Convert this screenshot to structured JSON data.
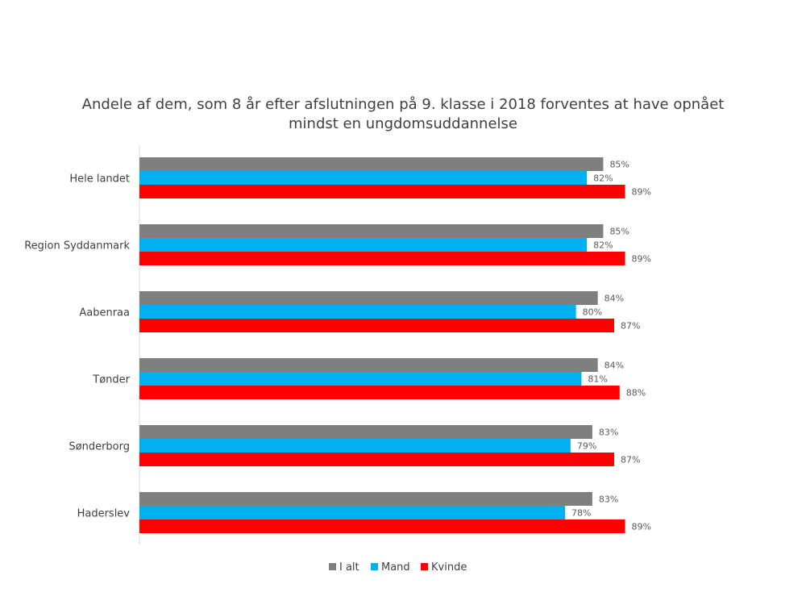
{
  "chart_data": {
    "type": "bar",
    "orientation": "horizontal",
    "title": "Andele af dem, som 8 år efter afslutningen på 9. klasse i 2018 forventes at have opnået mindst en ungdomsuddannelse",
    "categories": [
      "Hele landet",
      "Region Syddanmark",
      "Aabenraa",
      "Tønder",
      "Sønderborg",
      "Haderslev"
    ],
    "series": [
      {
        "name": "I alt",
        "color": "#7f7f7f",
        "values": [
          85,
          85,
          84,
          84,
          83,
          83
        ],
        "labels": [
          "85%",
          "85%",
          "84%",
          "84%",
          "83%",
          "83%"
        ]
      },
      {
        "name": "Mand",
        "color": "#00b0f0",
        "values": [
          82,
          82,
          80,
          81,
          79,
          78
        ],
        "labels": [
          "82%",
          "82%",
          "80%",
          "81%",
          "79%",
          "78%"
        ]
      },
      {
        "name": "Kvinde",
        "color": "#ff0000",
        "values": [
          89,
          89,
          87,
          88,
          87,
          89
        ],
        "labels": [
          "89%",
          "89%",
          "87%",
          "88%",
          "87%",
          "89%"
        ]
      }
    ],
    "legend_position": "bottom",
    "grid": false,
    "value_axis_visible": false
  }
}
